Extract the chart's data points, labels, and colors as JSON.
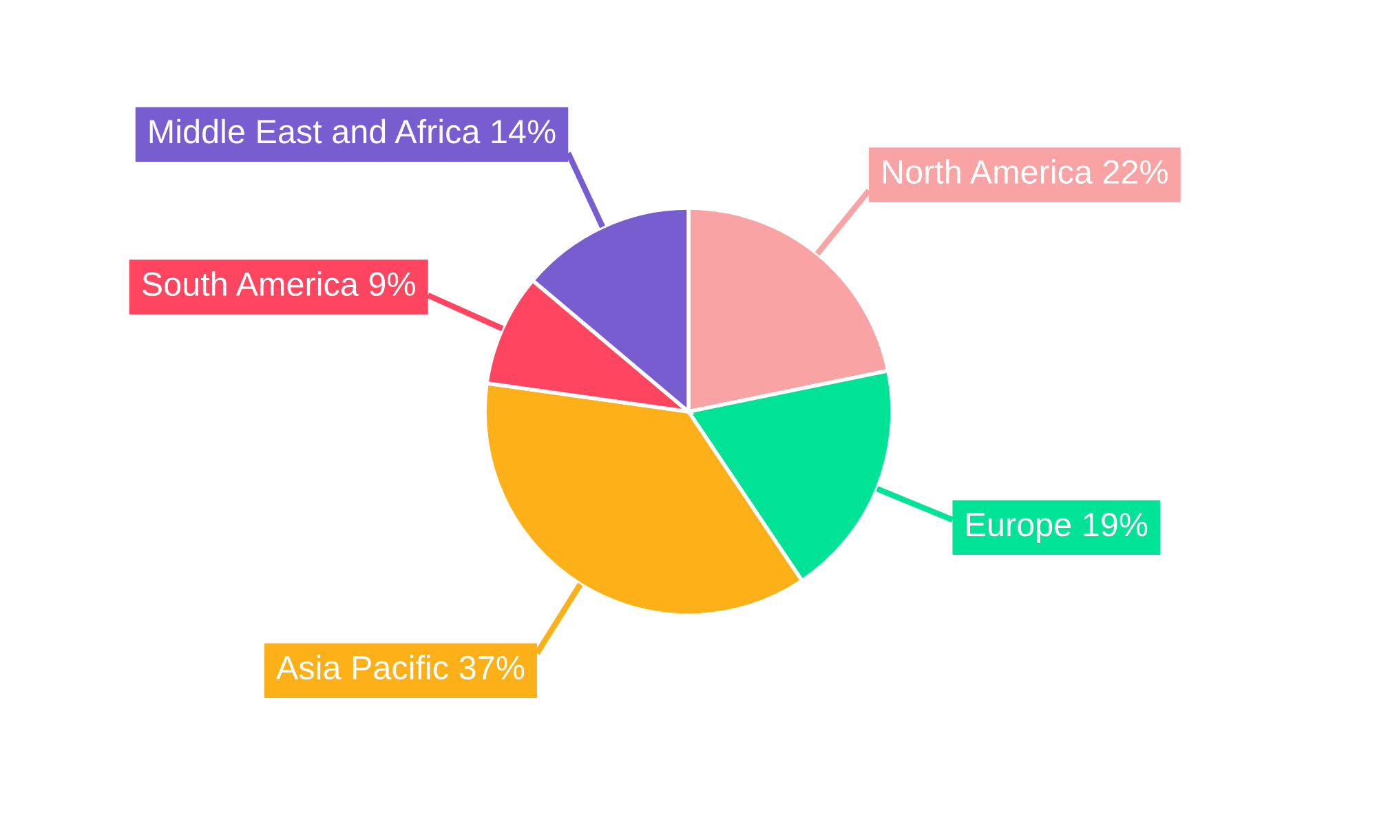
{
  "chart_data": {
    "type": "pie",
    "categories": [
      "North America",
      "Europe",
      "Asia Pacific",
      "South America",
      "Middle East and Africa"
    ],
    "values": [
      22,
      19,
      37,
      9,
      14
    ],
    "value_labels": [
      "22%",
      "19%",
      "37%",
      "9%",
      "14%"
    ],
    "colors": [
      "#f9a3a4",
      "#00e396",
      "#feb019",
      "#ff4560",
      "#775dd0"
    ],
    "legend": false
  }
}
